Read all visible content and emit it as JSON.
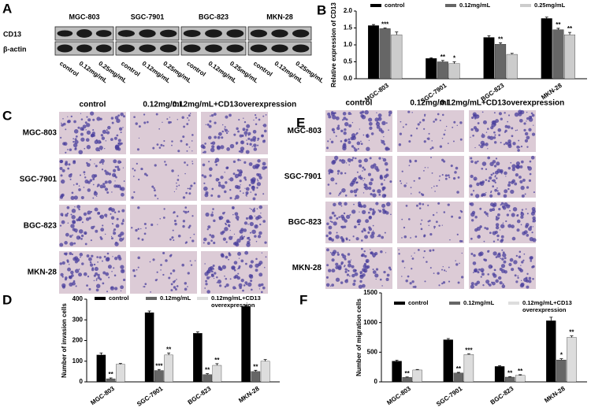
{
  "panel_letters": [
    "A",
    "B",
    "C",
    "D",
    "E",
    "F"
  ],
  "blot": {
    "groups": [
      "MGC-803",
      "SGC-7901",
      "BGC-823",
      "MKN-28"
    ],
    "rows": [
      "CD13",
      "β-actin"
    ],
    "lanes": [
      "control",
      "0.12mg/mL",
      "0.25mg/mL"
    ]
  },
  "invasion": {
    "columns": [
      "control",
      "0.12mg/mL",
      "0.12mg/mL+CD13overexpression"
    ],
    "rows": [
      "MGC-803",
      "SGC-7901",
      "BGC-823",
      "MKN-28"
    ]
  },
  "migration": {
    "columns": [
      "control",
      "0.12mg/mL",
      "0.12mg/mL+CD13overexpression"
    ],
    "rows": [
      "MGC-803",
      "SGC-7901",
      "BGC-823",
      "MKN-28"
    ]
  },
  "chart_data": [
    {
      "type": "bar",
      "ylabel": "Relative expression of CD13",
      "categories": [
        "MGC-803",
        "SGC-7901",
        "BGC-823",
        "MKN-28"
      ],
      "series": [
        {
          "name": "control",
          "color": "#000000",
          "values": [
            1.57,
            0.6,
            1.22,
            1.78
          ],
          "errors": [
            0.03,
            0.02,
            0.05,
            0.04
          ],
          "significance": [
            null,
            null,
            null,
            null
          ]
        },
        {
          "name": "0.12mg/mL",
          "color": "#666666",
          "values": [
            1.48,
            0.5,
            1.02,
            1.45
          ],
          "errors": [
            0.02,
            0.04,
            0.04,
            0.04
          ],
          "significance": [
            "***",
            "**",
            "**",
            "**"
          ]
        },
        {
          "name": "0.25mg/mL",
          "color": "#cccccc",
          "values": [
            1.3,
            0.45,
            0.72,
            1.3
          ],
          "errors": [
            0.08,
            0.05,
            0.03,
            0.07
          ],
          "significance": [
            null,
            "*",
            null,
            "**"
          ]
        }
      ],
      "ylim": [
        0,
        2
      ],
      "yticks": [
        {
          "value": 0,
          "label": "0.0"
        },
        0.5,
        {
          "value": 1,
          "label": "1.0"
        },
        1.5,
        {
          "value": 2,
          "label": "2.0"
        }
      ]
    },
    {
      "type": "bar",
      "ylabel": "Number of invasion cells",
      "categories": [
        "MGC-803",
        "SGC-7901",
        "BGC-823",
        "MKN-28"
      ],
      "series": [
        {
          "name": "control",
          "color": "#000000",
          "values": [
            130,
            335,
            235,
            365
          ],
          "errors": [
            10,
            8,
            7,
            6
          ],
          "significance": [
            null,
            null,
            null,
            null
          ]
        },
        {
          "name": "0.12mg/mL",
          "color": "#666666",
          "values": [
            15,
            55,
            35,
            50
          ],
          "errors": [
            4,
            5,
            5,
            6
          ],
          "significance": [
            "**",
            "***",
            "**",
            "**"
          ]
        },
        {
          "name": "0.12mg/mL+CD13 overexpression",
          "color": "#dddddd",
          "values": [
            85,
            130,
            80,
            100
          ],
          "errors": [
            4,
            10,
            8,
            8
          ],
          "significance": [
            null,
            "**",
            "**",
            null
          ]
        }
      ],
      "ylim": [
        0,
        400
      ],
      "yticks": [
        0,
        100,
        200,
        300,
        400
      ]
    },
    {
      "type": "bar",
      "ylabel": "Number of migration cells",
      "categories": [
        "MGC-803",
        "SGC-7901",
        "BGC-823",
        "MKN-28"
      ],
      "series": [
        {
          "name": "control",
          "color": "#000000",
          "values": [
            350,
            710,
            260,
            1030
          ],
          "errors": [
            15,
            20,
            12,
            60
          ],
          "significance": [
            null,
            null,
            null,
            null
          ]
        },
        {
          "name": "0.12mg/mL",
          "color": "#666666",
          "values": [
            75,
            150,
            80,
            370
          ],
          "errors": [
            8,
            10,
            8,
            20
          ],
          "significance": [
            "**",
            "**",
            "**",
            "*"
          ]
        },
        {
          "name": "0.12mg/mL+CD13 overexpression",
          "color": "#dddddd",
          "values": [
            200,
            460,
            110,
            750
          ],
          "errors": [
            8,
            15,
            10,
            25
          ],
          "significance": [
            null,
            "***",
            "**",
            "**"
          ]
        }
      ],
      "ylim": [
        0,
        1500
      ],
      "yticks": [
        0,
        500,
        1000,
        1500
      ]
    }
  ]
}
